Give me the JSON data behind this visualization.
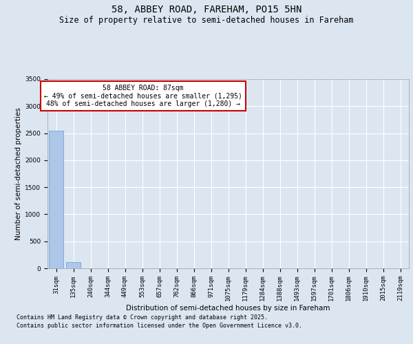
{
  "title": "58, ABBEY ROAD, FAREHAM, PO15 5HN",
  "subtitle": "Size of property relative to semi-detached houses in Fareham",
  "xlabel": "Distribution of semi-detached houses by size in Fareham",
  "ylabel": "Number of semi-detached properties",
  "bin_labels": [
    "31sqm",
    "135sqm",
    "240sqm",
    "344sqm",
    "449sqm",
    "553sqm",
    "657sqm",
    "762sqm",
    "866sqm",
    "971sqm",
    "1075sqm",
    "1179sqm",
    "1284sqm",
    "1388sqm",
    "1493sqm",
    "1597sqm",
    "1701sqm",
    "1806sqm",
    "1910sqm",
    "2015sqm",
    "2119sqm"
  ],
  "bar_values": [
    2540,
    115,
    0,
    0,
    0,
    0,
    0,
    0,
    0,
    0,
    0,
    0,
    0,
    0,
    0,
    0,
    0,
    0,
    0,
    0,
    0
  ],
  "bar_color": "#aec6e8",
  "bar_edge_color": "#5a9fd4",
  "annotation_title": "58 ABBEY ROAD: 87sqm",
  "annotation_line2": "← 49% of semi-detached houses are smaller (1,295)",
  "annotation_line3": "48% of semi-detached houses are larger (1,280) →",
  "annotation_box_color": "#ffffff",
  "annotation_box_edge_color": "#cc0000",
  "ylim": [
    0,
    3500
  ],
  "yticks": [
    0,
    500,
    1000,
    1500,
    2000,
    2500,
    3000,
    3500
  ],
  "background_color": "#dce6f1",
  "plot_background_color": "#dce6f1",
  "grid_color": "#ffffff",
  "footer_line1": "Contains HM Land Registry data © Crown copyright and database right 2025.",
  "footer_line2": "Contains public sector information licensed under the Open Government Licence v3.0.",
  "title_fontsize": 10,
  "subtitle_fontsize": 8.5,
  "axis_label_fontsize": 7.5,
  "tick_fontsize": 6.5,
  "annotation_fontsize": 7,
  "footer_fontsize": 6
}
